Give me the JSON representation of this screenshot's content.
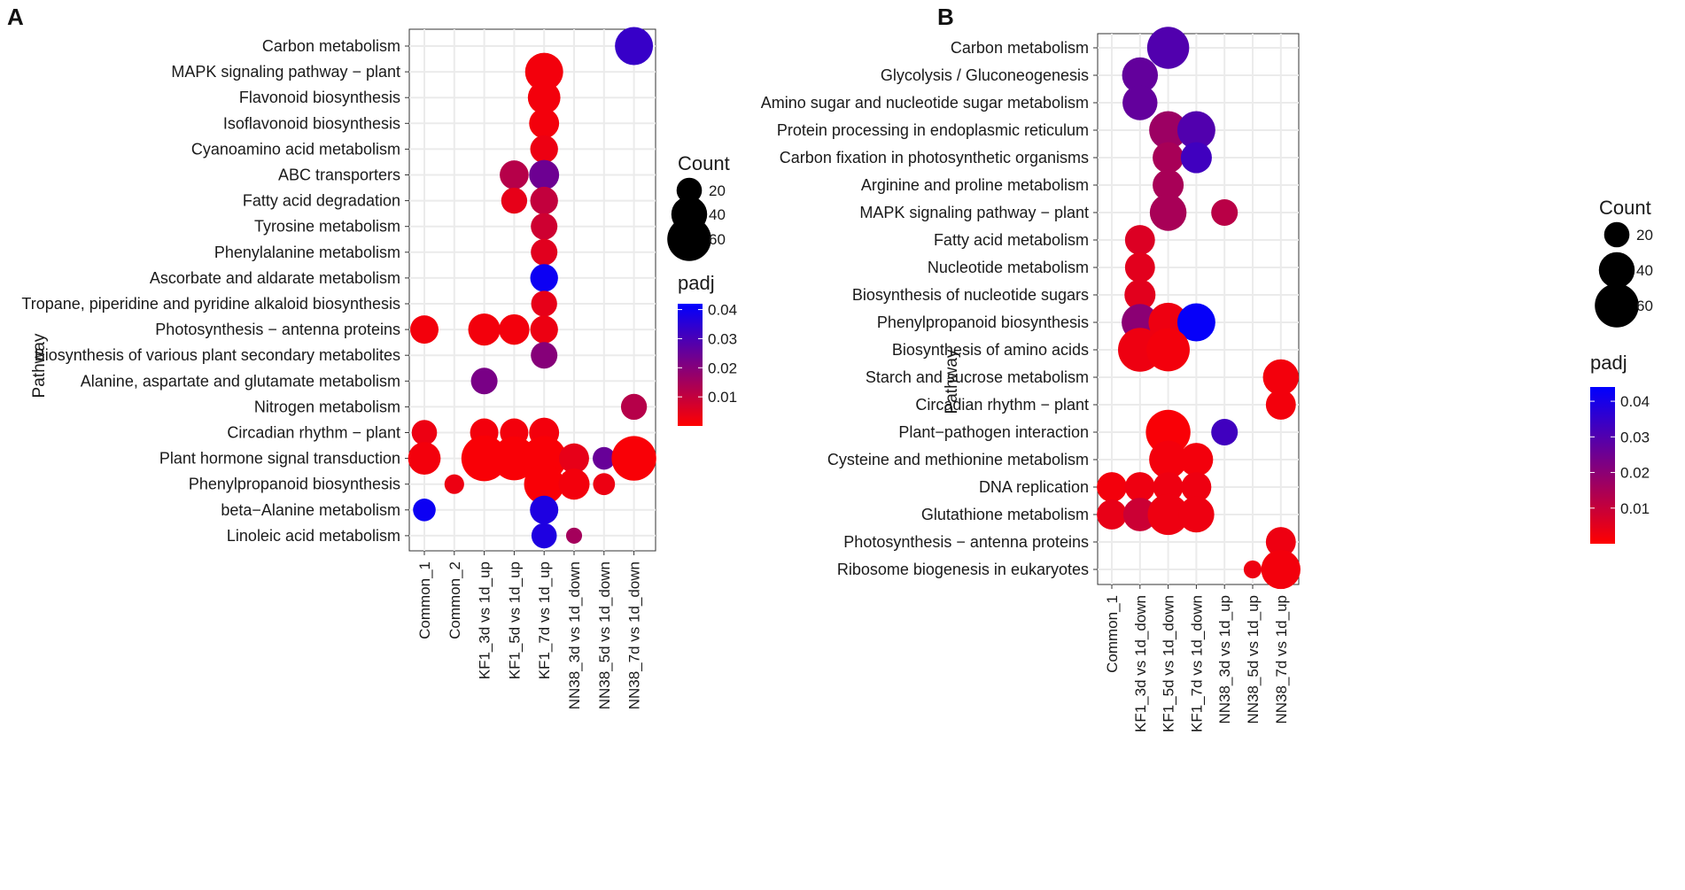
{
  "chart_data": [
    {
      "type": "scatter",
      "panel": "A",
      "ylabel": "Pathway",
      "categories_x": [
        "Common_1",
        "Common_2",
        "KF1_3d vs 1d_up",
        "KF1_5d vs 1d_up",
        "KF1_7d vs 1d_up",
        "NN38_3d vs 1d_down",
        "NN38_5d vs 1d_down",
        "NN38_7d vs 1d_down"
      ],
      "categories_y": [
        "Carbon metabolism",
        "MAPK signaling pathway − plant",
        "Flavonoid biosynthesis",
        "Isoflavonoid biosynthesis",
        "Cyanoamino acid metabolism",
        "ABC transporters",
        "Fatty acid degradation",
        "Tyrosine metabolism",
        "Phenylalanine metabolism",
        "Ascorbate and aldarate metabolism",
        "Tropane, piperidine and pyridine alkaloid biosynthesis",
        "Photosynthesis − antenna proteins",
        "Biosynthesis of various plant secondary metabolites",
        "Alanine, aspartate and glutamate metabolism",
        "Nitrogen metabolism",
        "Circadian rhythm − plant",
        "Plant hormone signal transduction",
        "Phenylpropanoid biosynthesis",
        "beta−Alanine metabolism",
        "Linoleic acid metabolism"
      ],
      "points": [
        {
          "x": "NN38_7d vs 1d_down",
          "y": "Carbon metabolism",
          "count": 45,
          "padj": 0.033
        },
        {
          "x": "KF1_7d vs 1d_up",
          "y": "MAPK signaling pathway − plant",
          "count": 45,
          "padj": 0.002
        },
        {
          "x": "KF1_7d vs 1d_up",
          "y": "Flavonoid biosynthesis",
          "count": 33,
          "padj": 0.002
        },
        {
          "x": "KF1_7d vs 1d_up",
          "y": "Isoflavonoid biosynthesis",
          "count": 28,
          "padj": 0.002
        },
        {
          "x": "KF1_7d vs 1d_up",
          "y": "Cyanoamino acid metabolism",
          "count": 24,
          "padj": 0.003
        },
        {
          "x": "KF1_5d vs 1d_up",
          "y": "ABC transporters",
          "count": 26,
          "padj": 0.012
        },
        {
          "x": "KF1_7d vs 1d_up",
          "y": "ABC transporters",
          "count": 28,
          "padj": 0.024
        },
        {
          "x": "KF1_5d vs 1d_up",
          "y": "Fatty acid degradation",
          "count": 21,
          "padj": 0.004
        },
        {
          "x": "KF1_7d vs 1d_up",
          "y": "Fatty acid degradation",
          "count": 24,
          "padj": 0.01
        },
        {
          "x": "KF1_7d vs 1d_up",
          "y": "Tyrosine metabolism",
          "count": 22,
          "padj": 0.008
        },
        {
          "x": "KF1_7d vs 1d_up",
          "y": "Phenylalanine metabolism",
          "count": 22,
          "padj": 0.005
        },
        {
          "x": "KF1_7d vs 1d_up",
          "y": "Ascorbate and aldarate metabolism",
          "count": 24,
          "padj": 0.04
        },
        {
          "x": "KF1_7d vs 1d_up",
          "y": "Tropane, piperidine and pyridine alkaloid biosynthesis",
          "count": 21,
          "padj": 0.004
        },
        {
          "x": "Common_1",
          "y": "Photosynthesis − antenna proteins",
          "count": 25,
          "padj": 0.002
        },
        {
          "x": "KF1_3d vs 1d_up",
          "y": "Photosynthesis − antenna proteins",
          "count": 32,
          "padj": 0.002
        },
        {
          "x": "KF1_5d vs 1d_up",
          "y": "Photosynthesis − antenna proteins",
          "count": 29,
          "padj": 0.002
        },
        {
          "x": "KF1_7d vs 1d_up",
          "y": "Photosynthesis − antenna proteins",
          "count": 24,
          "padj": 0.003
        },
        {
          "x": "KF1_7d vs 1d_up",
          "y": "Biosynthesis of various plant secondary metabolites",
          "count": 22,
          "padj": 0.02
        },
        {
          "x": "KF1_3d vs 1d_up",
          "y": "Alanine, aspartate and glutamate metabolism",
          "count": 22,
          "padj": 0.022
        },
        {
          "x": "NN38_7d vs 1d_down",
          "y": "Nitrogen metabolism",
          "count": 21,
          "padj": 0.012
        },
        {
          "x": "Common_1",
          "y": "Circadian rhythm − plant",
          "count": 20,
          "padj": 0.003
        },
        {
          "x": "KF1_3d vs 1d_up",
          "y": "Circadian rhythm − plant",
          "count": 25,
          "padj": 0.002
        },
        {
          "x": "KF1_5d vs 1d_up",
          "y": "Circadian rhythm − plant",
          "count": 25,
          "padj": 0.002
        },
        {
          "x": "KF1_7d vs 1d_up",
          "y": "Circadian rhythm − plant",
          "count": 28,
          "padj": 0.002
        },
        {
          "x": "Common_1",
          "y": "Plant hormone signal transduction",
          "count": 33,
          "padj": 0.002
        },
        {
          "x": "KF1_3d vs 1d_up",
          "y": "Plant hormone signal transduction",
          "count": 65,
          "padj": 0.001
        },
        {
          "x": "KF1_5d vs 1d_up",
          "y": "Plant hormone signal transduction",
          "count": 60,
          "padj": 0.001
        },
        {
          "x": "KF1_7d vs 1d_up",
          "y": "Plant hormone signal transduction",
          "count": 62,
          "padj": 0.001
        },
        {
          "x": "NN38_3d vs 1d_down",
          "y": "Plant hormone signal transduction",
          "count": 28,
          "padj": 0.004
        },
        {
          "x": "NN38_5d vs 1d_down",
          "y": "Plant hormone signal transduction",
          "count": 16,
          "padj": 0.025
        },
        {
          "x": "NN38_7d vs 1d_down",
          "y": "Plant hormone signal transduction",
          "count": 62,
          "padj": 0.001
        },
        {
          "x": "Common_2",
          "y": "Phenylpropanoid biosynthesis",
          "count": 12,
          "padj": 0.003
        },
        {
          "x": "KF1_7d vs 1d_up",
          "y": "Phenylpropanoid biosynthesis",
          "count": 50,
          "padj": 0.001
        },
        {
          "x": "NN38_3d vs 1d_down",
          "y": "Phenylpropanoid biosynthesis",
          "count": 30,
          "padj": 0.002
        },
        {
          "x": "NN38_5d vs 1d_down",
          "y": "Phenylpropanoid biosynthesis",
          "count": 15,
          "padj": 0.003
        },
        {
          "x": "Common_1",
          "y": "beta−Alanine metabolism",
          "count": 16,
          "padj": 0.04
        },
        {
          "x": "KF1_7d vs 1d_up",
          "y": "beta−Alanine metabolism",
          "count": 25,
          "padj": 0.037
        },
        {
          "x": "KF1_7d vs 1d_up",
          "y": "Linoleic acid metabolism",
          "count": 20,
          "padj": 0.037
        },
        {
          "x": "NN38_3d vs 1d_down",
          "y": "Linoleic acid metabolism",
          "count": 8,
          "padj": 0.015
        }
      ],
      "size_legend": {
        "title": "Count",
        "breaks": [
          20,
          40,
          60
        ]
      },
      "color_legend": {
        "title": "padj",
        "min": 0,
        "max": 0.042,
        "breaks": [
          0.01,
          0.02,
          0.03,
          0.04
        ],
        "low": "#ff0000",
        "high": "#0000ff"
      }
    },
    {
      "type": "scatter",
      "panel": "B",
      "ylabel": "Pathway",
      "categories_x": [
        "Common_1",
        "KF1_3d vs 1d_down",
        "KF1_5d vs 1d_down",
        "KF1_7d vs 1d_down",
        "NN38_3d vs 1d_up",
        "NN38_5d vs 1d_up",
        "NN38_7d vs 1d_up"
      ],
      "categories_y": [
        "Carbon metabolism",
        "Glycolysis / Gluconeogenesis",
        "Amino sugar and nucleotide sugar metabolism",
        "Protein processing in endoplasmic reticulum",
        "Carbon fixation in photosynthetic organisms",
        "Arginine and proline metabolism",
        "MAPK signaling pathway − plant",
        "Fatty acid metabolism",
        "Nucleotide metabolism",
        "Biosynthesis of nucleotide sugars",
        "Phenylpropanoid biosynthesis",
        "Biosynthesis of amino acids",
        "Starch and sucrose metabolism",
        "Circadian rhythm − plant",
        "Plant−pathogen interaction",
        "Cysteine and methionine metabolism",
        "DNA replication",
        "Glutathione metabolism",
        "Photosynthesis − antenna proteins",
        "Ribosome biogenesis in eukaryotes"
      ],
      "points": [
        {
          "x": "KF1_5d vs 1d_down",
          "y": "Carbon metabolism",
          "count": 55,
          "padj": 0.03
        },
        {
          "x": "KF1_3d vs 1d_down",
          "y": "Glycolysis / Gluconeogenesis",
          "count": 40,
          "padj": 0.027
        },
        {
          "x": "KF1_3d vs 1d_down",
          "y": "Amino sugar and nucleotide sugar metabolism",
          "count": 38,
          "padj": 0.027
        },
        {
          "x": "KF1_5d vs 1d_down",
          "y": "Protein processing in endoplasmic reticulum",
          "count": 45,
          "padj": 0.017
        },
        {
          "x": "KF1_7d vs 1d_down",
          "y": "Protein processing in endoplasmic reticulum",
          "count": 45,
          "padj": 0.03
        },
        {
          "x": "KF1_5d vs 1d_down",
          "y": "Carbon fixation in photosynthetic organisms",
          "count": 30,
          "padj": 0.015
        },
        {
          "x": "KF1_7d vs 1d_down",
          "y": "Carbon fixation in photosynthetic organisms",
          "count": 30,
          "padj": 0.033
        },
        {
          "x": "KF1_5d vs 1d_down",
          "y": "Arginine and proline metabolism",
          "count": 30,
          "padj": 0.015
        },
        {
          "x": "KF1_5d vs 1d_down",
          "y": "MAPK signaling pathway − plant",
          "count": 42,
          "padj": 0.015
        },
        {
          "x": "NN38_3d vs 1d_up",
          "y": "MAPK signaling pathway − plant",
          "count": 22,
          "padj": 0.012
        },
        {
          "x": "KF1_3d vs 1d_down",
          "y": "Fatty acid metabolism",
          "count": 28,
          "padj": 0.006
        },
        {
          "x": "KF1_3d vs 1d_down",
          "y": "Nucleotide metabolism",
          "count": 28,
          "padj": 0.005
        },
        {
          "x": "KF1_3d vs 1d_down",
          "y": "Biosynthesis of nucleotide sugars",
          "count": 30,
          "padj": 0.005
        },
        {
          "x": "KF1_3d vs 1d_down",
          "y": "Phenylpropanoid biosynthesis",
          "count": 42,
          "padj": 0.02
        },
        {
          "x": "KF1_5d vs 1d_down",
          "y": "Phenylpropanoid biosynthesis",
          "count": 48,
          "padj": 0.003
        },
        {
          "x": "KF1_7d vs 1d_down",
          "y": "Phenylpropanoid biosynthesis",
          "count": 45,
          "padj": 0.043
        },
        {
          "x": "KF1_3d vs 1d_down",
          "y": "Biosynthesis of amino acids",
          "count": 60,
          "padj": 0.003
        },
        {
          "x": "KF1_5d vs 1d_down",
          "y": "Biosynthesis of amino acids",
          "count": 58,
          "padj": 0.002
        },
        {
          "x": "NN38_7d vs 1d_up",
          "y": "Starch and sucrose metabolism",
          "count": 40,
          "padj": 0.002
        },
        {
          "x": "NN38_7d vs 1d_up",
          "y": "Circadian rhythm − plant",
          "count": 28,
          "padj": 0.002
        },
        {
          "x": "KF1_5d vs 1d_down",
          "y": "Plant−pathogen interaction",
          "count": 62,
          "padj": 0.001
        },
        {
          "x": "NN38_3d vs 1d_up",
          "y": "Plant−pathogen interaction",
          "count": 22,
          "padj": 0.033
        },
        {
          "x": "KF1_5d vs 1d_down",
          "y": "Cysteine and methionine metabolism",
          "count": 45,
          "padj": 0.002
        },
        {
          "x": "KF1_7d vs 1d_down",
          "y": "Cysteine and methionine metabolism",
          "count": 35,
          "padj": 0.002
        },
        {
          "x": "Common_1",
          "y": "DNA replication",
          "count": 28,
          "padj": 0.002
        },
        {
          "x": "KF1_3d vs 1d_down",
          "y": "DNA replication",
          "count": 28,
          "padj": 0.003
        },
        {
          "x": "KF1_5d vs 1d_down",
          "y": "DNA replication",
          "count": 28,
          "padj": 0.003
        },
        {
          "x": "KF1_7d vs 1d_down",
          "y": "DNA replication",
          "count": 28,
          "padj": 0.003
        },
        {
          "x": "Common_1",
          "y": "Glutathione metabolism",
          "count": 28,
          "padj": 0.004
        },
        {
          "x": "KF1_3d vs 1d_down",
          "y": "Glutathione metabolism",
          "count": 35,
          "padj": 0.009
        },
        {
          "x": "KF1_5d vs 1d_down",
          "y": "Glutathione metabolism",
          "count": 52,
          "padj": 0.003
        },
        {
          "x": "KF1_7d vs 1d_down",
          "y": "Glutathione metabolism",
          "count": 40,
          "padj": 0.003
        },
        {
          "x": "NN38_7d vs 1d_up",
          "y": "Photosynthesis − antenna proteins",
          "count": 28,
          "padj": 0.003
        },
        {
          "x": "NN38_5d vs 1d_up",
          "y": "Ribosome biogenesis in eukaryotes",
          "count": 10,
          "padj": 0.003
        },
        {
          "x": "NN38_7d vs 1d_up",
          "y": "Ribosome biogenesis in eukaryotes",
          "count": 48,
          "padj": 0.002
        }
      ],
      "size_legend": {
        "title": "Count",
        "breaks": [
          20,
          40,
          60
        ]
      },
      "color_legend": {
        "title": "padj",
        "min": 0,
        "max": 0.044,
        "breaks": [
          0.01,
          0.02,
          0.03,
          0.04
        ],
        "low": "#ff0000",
        "high": "#0000ff"
      }
    }
  ]
}
